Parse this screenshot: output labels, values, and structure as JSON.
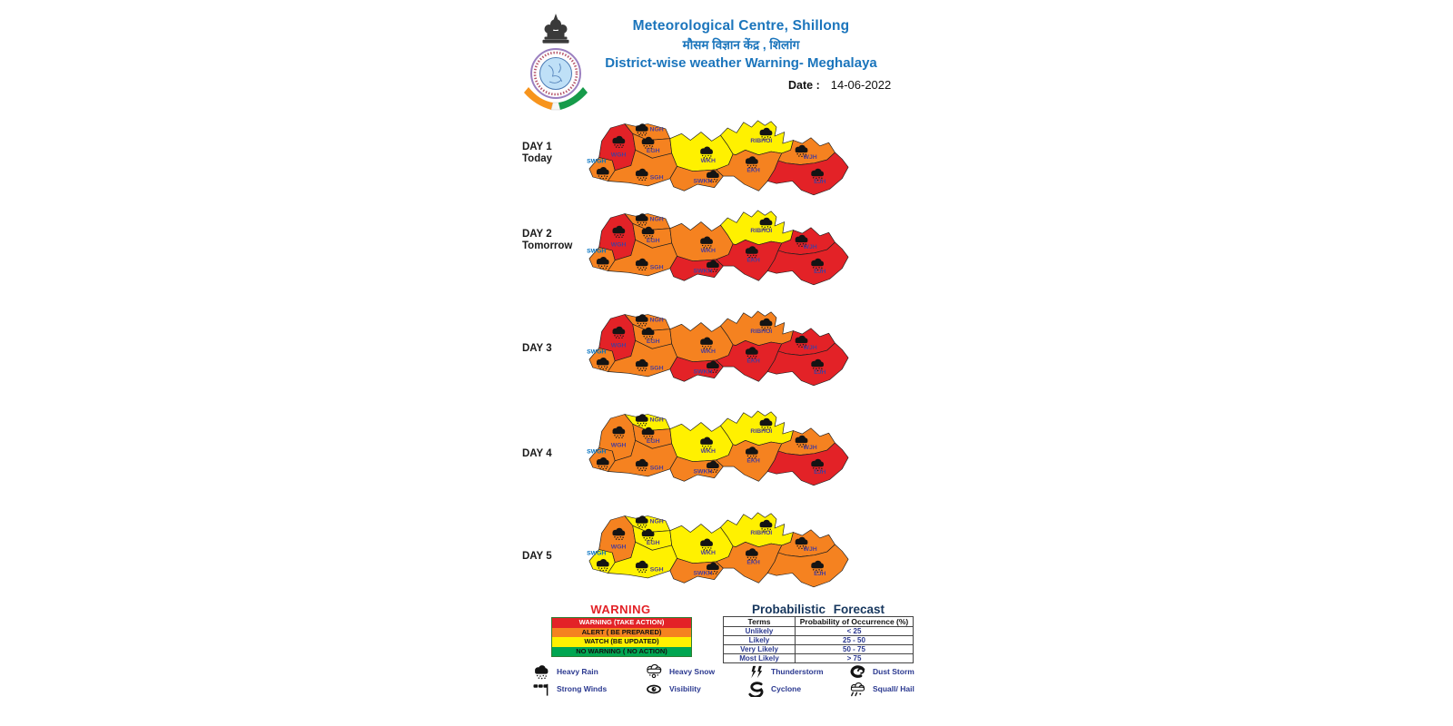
{
  "header": {
    "title_en": "Meteorological Centre, Shillong",
    "title_hi": "मौसम विज्ञान केंद्र , शिलांग",
    "subtitle": "District-wise weather Warning- Meghalaya",
    "date_label": "Date :",
    "date_value": "14-06-2022"
  },
  "colors": {
    "warning_red": "#e32227",
    "alert_orange": "#f58220",
    "watch_yellow": "#fff100",
    "no_warning_green": "#00a651",
    "title_blue": "#1b75bc",
    "label_purple": "#4b3e99",
    "label_blue": "#0070c0"
  },
  "districts": [
    {
      "id": "SWGH",
      "label": "SWGH"
    },
    {
      "id": "WGH",
      "label": "WGH"
    },
    {
      "id": "NGH",
      "label": "NGH"
    },
    {
      "id": "EGH",
      "label": "EGH"
    },
    {
      "id": "SGH",
      "label": "SGH"
    },
    {
      "id": "WKH",
      "label": "WKH"
    },
    {
      "id": "SWKH",
      "label": "SWKH"
    },
    {
      "id": "RIBHOI",
      "label": "RIBHOI"
    },
    {
      "id": "EKH",
      "label": "EKH"
    },
    {
      "id": "WJH",
      "label": "WJH"
    },
    {
      "id": "EJH",
      "label": "EJH"
    }
  ],
  "days": [
    {
      "label_line1": "DAY 1",
      "label_line2": "Today",
      "warnings": {
        "SWGH": "alert",
        "WGH": "warning",
        "NGH": "alert",
        "EGH": "alert",
        "SGH": "alert",
        "WKH": "watch",
        "SWKH": "alert",
        "RIBHOI": "watch",
        "EKH": "alert",
        "WJH": "alert",
        "EJH": "warning"
      }
    },
    {
      "label_line1": "DAY 2",
      "label_line2": "Tomorrow",
      "warnings": {
        "SWGH": "alert",
        "WGH": "warning",
        "NGH": "alert",
        "EGH": "alert",
        "SGH": "alert",
        "WKH": "alert",
        "SWKH": "warning",
        "RIBHOI": "watch",
        "EKH": "warning",
        "WJH": "warning",
        "EJH": "warning"
      }
    },
    {
      "label_line1": "DAY 3",
      "label_line2": "",
      "warnings": {
        "SWGH": "alert",
        "WGH": "warning",
        "NGH": "alert",
        "EGH": "alert",
        "SGH": "alert",
        "WKH": "alert",
        "SWKH": "warning",
        "RIBHOI": "alert",
        "EKH": "warning",
        "WJH": "warning",
        "EJH": "warning"
      }
    },
    {
      "label_line1": "DAY 4",
      "label_line2": "",
      "warnings": {
        "SWGH": "alert",
        "WGH": "alert",
        "NGH": "watch",
        "EGH": "alert",
        "SGH": "alert",
        "WKH": "watch",
        "SWKH": "alert",
        "RIBHOI": "watch",
        "EKH": "alert",
        "WJH": "alert",
        "EJH": "warning"
      }
    },
    {
      "label_line1": "DAY 5",
      "label_line2": "",
      "warnings": {
        "SWGH": "watch",
        "WGH": "alert",
        "NGH": "watch",
        "EGH": "watch",
        "SGH": "watch",
        "WKH": "watch",
        "SWKH": "alert",
        "RIBHOI": "watch",
        "EKH": "alert",
        "WJH": "alert",
        "EJH": "alert"
      }
    }
  ],
  "warning_legend": {
    "title": "WARNING",
    "rows": [
      {
        "text": "WARNING (TAKE ACTION)",
        "bg": "#e32227",
        "fg": "#ffffff"
      },
      {
        "text": "ALERT ( BE PREPARED)",
        "bg": "#f58220",
        "fg": "#111111"
      },
      {
        "text": "WATCH (BE UPDATED)",
        "bg": "#fff100",
        "fg": "#111111"
      },
      {
        "text": "NO WARNING ( NO ACTION)",
        "bg": "#00a651",
        "fg": "#111111"
      }
    ]
  },
  "prob_forecast": {
    "title": "Probabilistic Forecast",
    "headers": [
      "Terms",
      "Probability of Occurrence (%)"
    ],
    "rows": [
      [
        "Unlikely",
        "< 25"
      ],
      [
        "Likely",
        "25 - 50"
      ],
      [
        "Very Likely",
        "50 - 75"
      ],
      [
        "Most Likely",
        "> 75"
      ]
    ]
  },
  "symbol_legend": {
    "items": [
      {
        "icon": "heavy-rain-icon",
        "label": "Heavy Rain"
      },
      {
        "icon": "heavy-snow-icon",
        "label": "Heavy Snow"
      },
      {
        "icon": "thunderstorm-icon",
        "label": "Thunderstorm"
      },
      {
        "icon": "dust-storm-icon",
        "label": "Dust Storm"
      },
      {
        "icon": "strong-winds-icon",
        "label": "Strong Winds"
      },
      {
        "icon": "visibility-icon",
        "label": "Visibility"
      },
      {
        "icon": "cyclone-icon",
        "label": "Cyclone"
      },
      {
        "icon": "squall-hail-icon",
        "label": "Squall/ Hail"
      }
    ]
  }
}
